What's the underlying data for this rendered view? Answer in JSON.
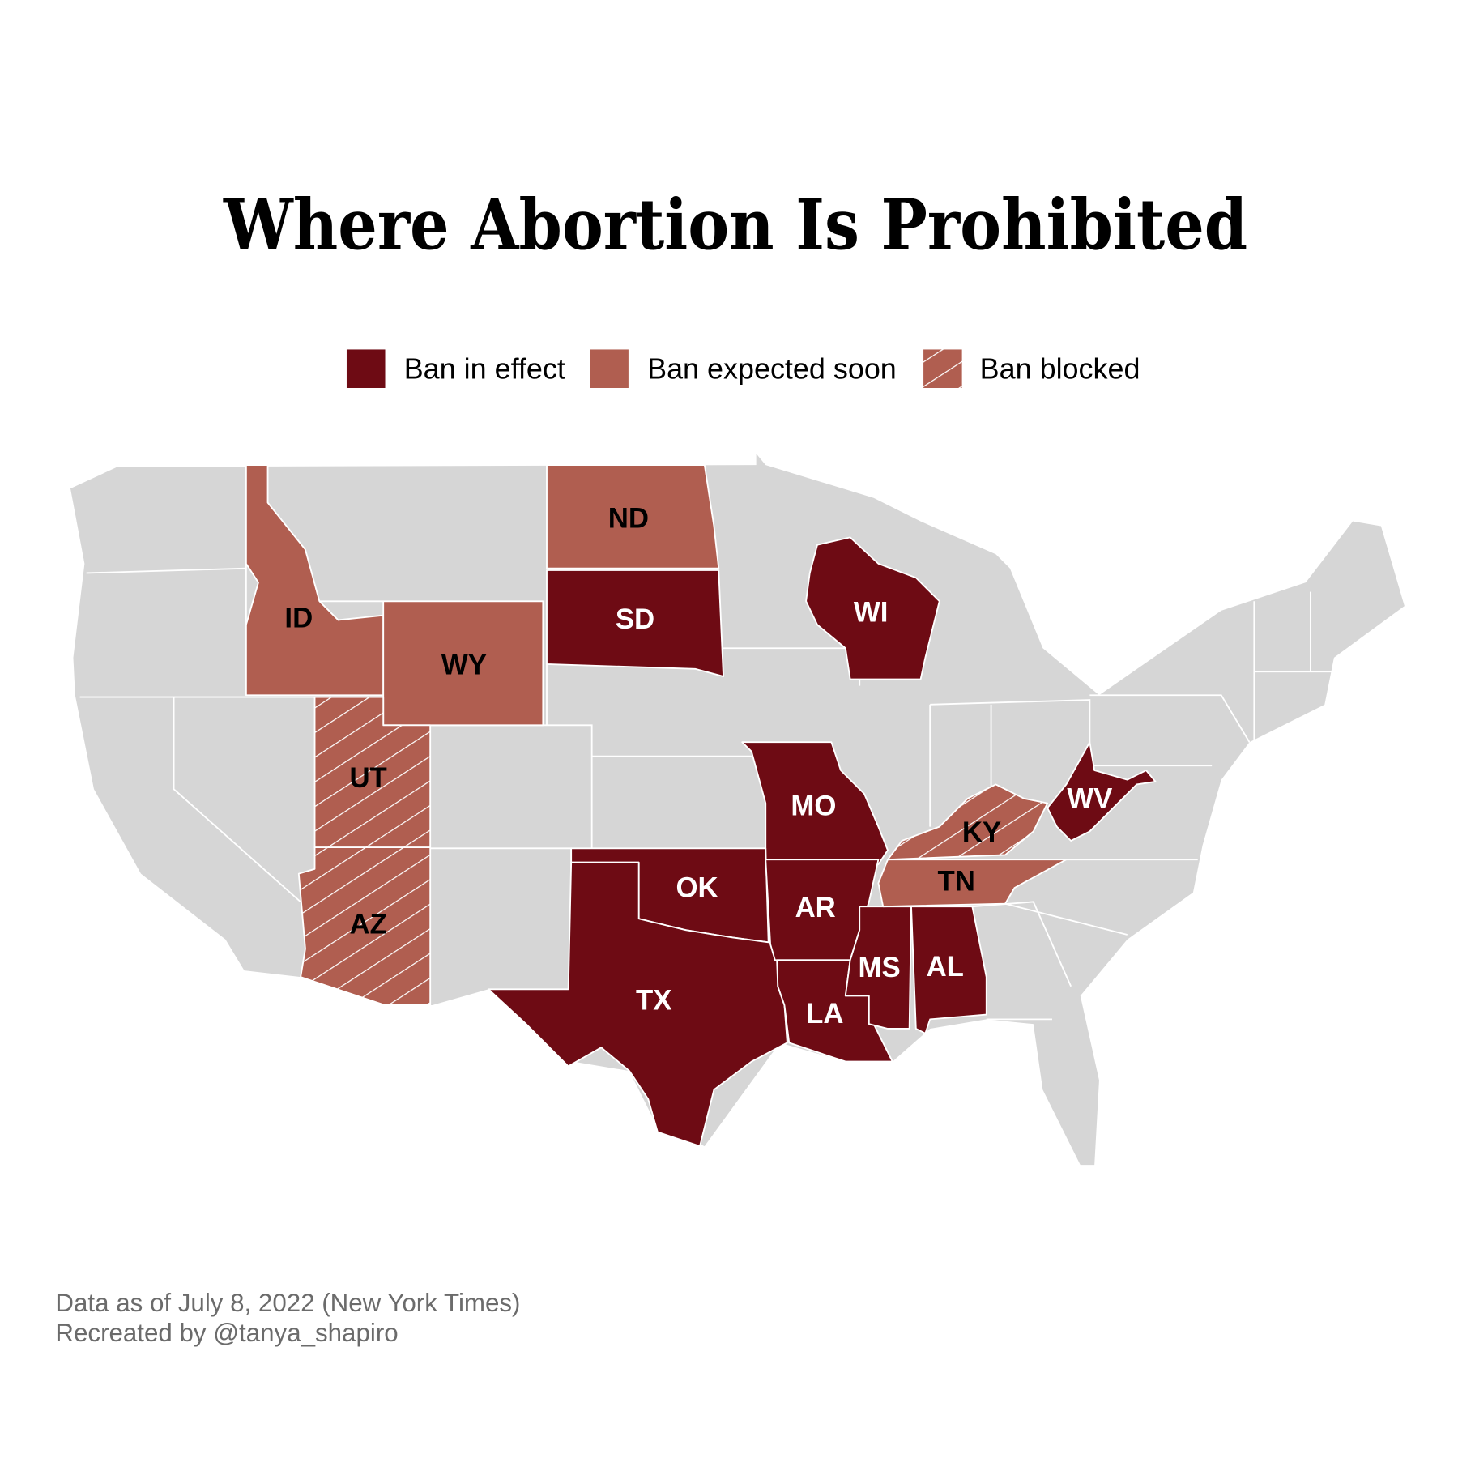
{
  "title": "Where Abortion Is Prohibited",
  "colors": {
    "ban_in_effect": "#6e0b14",
    "ban_expected": "#b05e50",
    "other": "#d6d6d6"
  },
  "legend": [
    {
      "label": "Ban in effect",
      "status": "ban_in_effect"
    },
    {
      "label": "Ban expected soon",
      "status": "ban_expected"
    },
    {
      "label": "Ban blocked",
      "status": "ban_blocked"
    }
  ],
  "states": [
    {
      "abbr": "ID",
      "status": "ban_expected"
    },
    {
      "abbr": "WY",
      "status": "ban_expected"
    },
    {
      "abbr": "ND",
      "status": "ban_expected"
    },
    {
      "abbr": "SD",
      "status": "ban_in_effect"
    },
    {
      "abbr": "UT",
      "status": "ban_blocked"
    },
    {
      "abbr": "AZ",
      "status": "ban_blocked"
    },
    {
      "abbr": "WI",
      "status": "ban_in_effect"
    },
    {
      "abbr": "MO",
      "status": "ban_in_effect"
    },
    {
      "abbr": "OK",
      "status": "ban_in_effect"
    },
    {
      "abbr": "TX",
      "status": "ban_in_effect"
    },
    {
      "abbr": "AR",
      "status": "ban_in_effect"
    },
    {
      "abbr": "LA",
      "status": "ban_in_effect"
    },
    {
      "abbr": "MS",
      "status": "ban_in_effect"
    },
    {
      "abbr": "AL",
      "status": "ban_in_effect"
    },
    {
      "abbr": "TN",
      "status": "ban_expected"
    },
    {
      "abbr": "KY",
      "status": "ban_blocked"
    },
    {
      "abbr": "WV",
      "status": "ban_in_effect"
    }
  ],
  "footer": {
    "line1": "Data as of July 8, 2022 (New York Times)",
    "line2": "Recreated by @tanya_shapiro"
  }
}
